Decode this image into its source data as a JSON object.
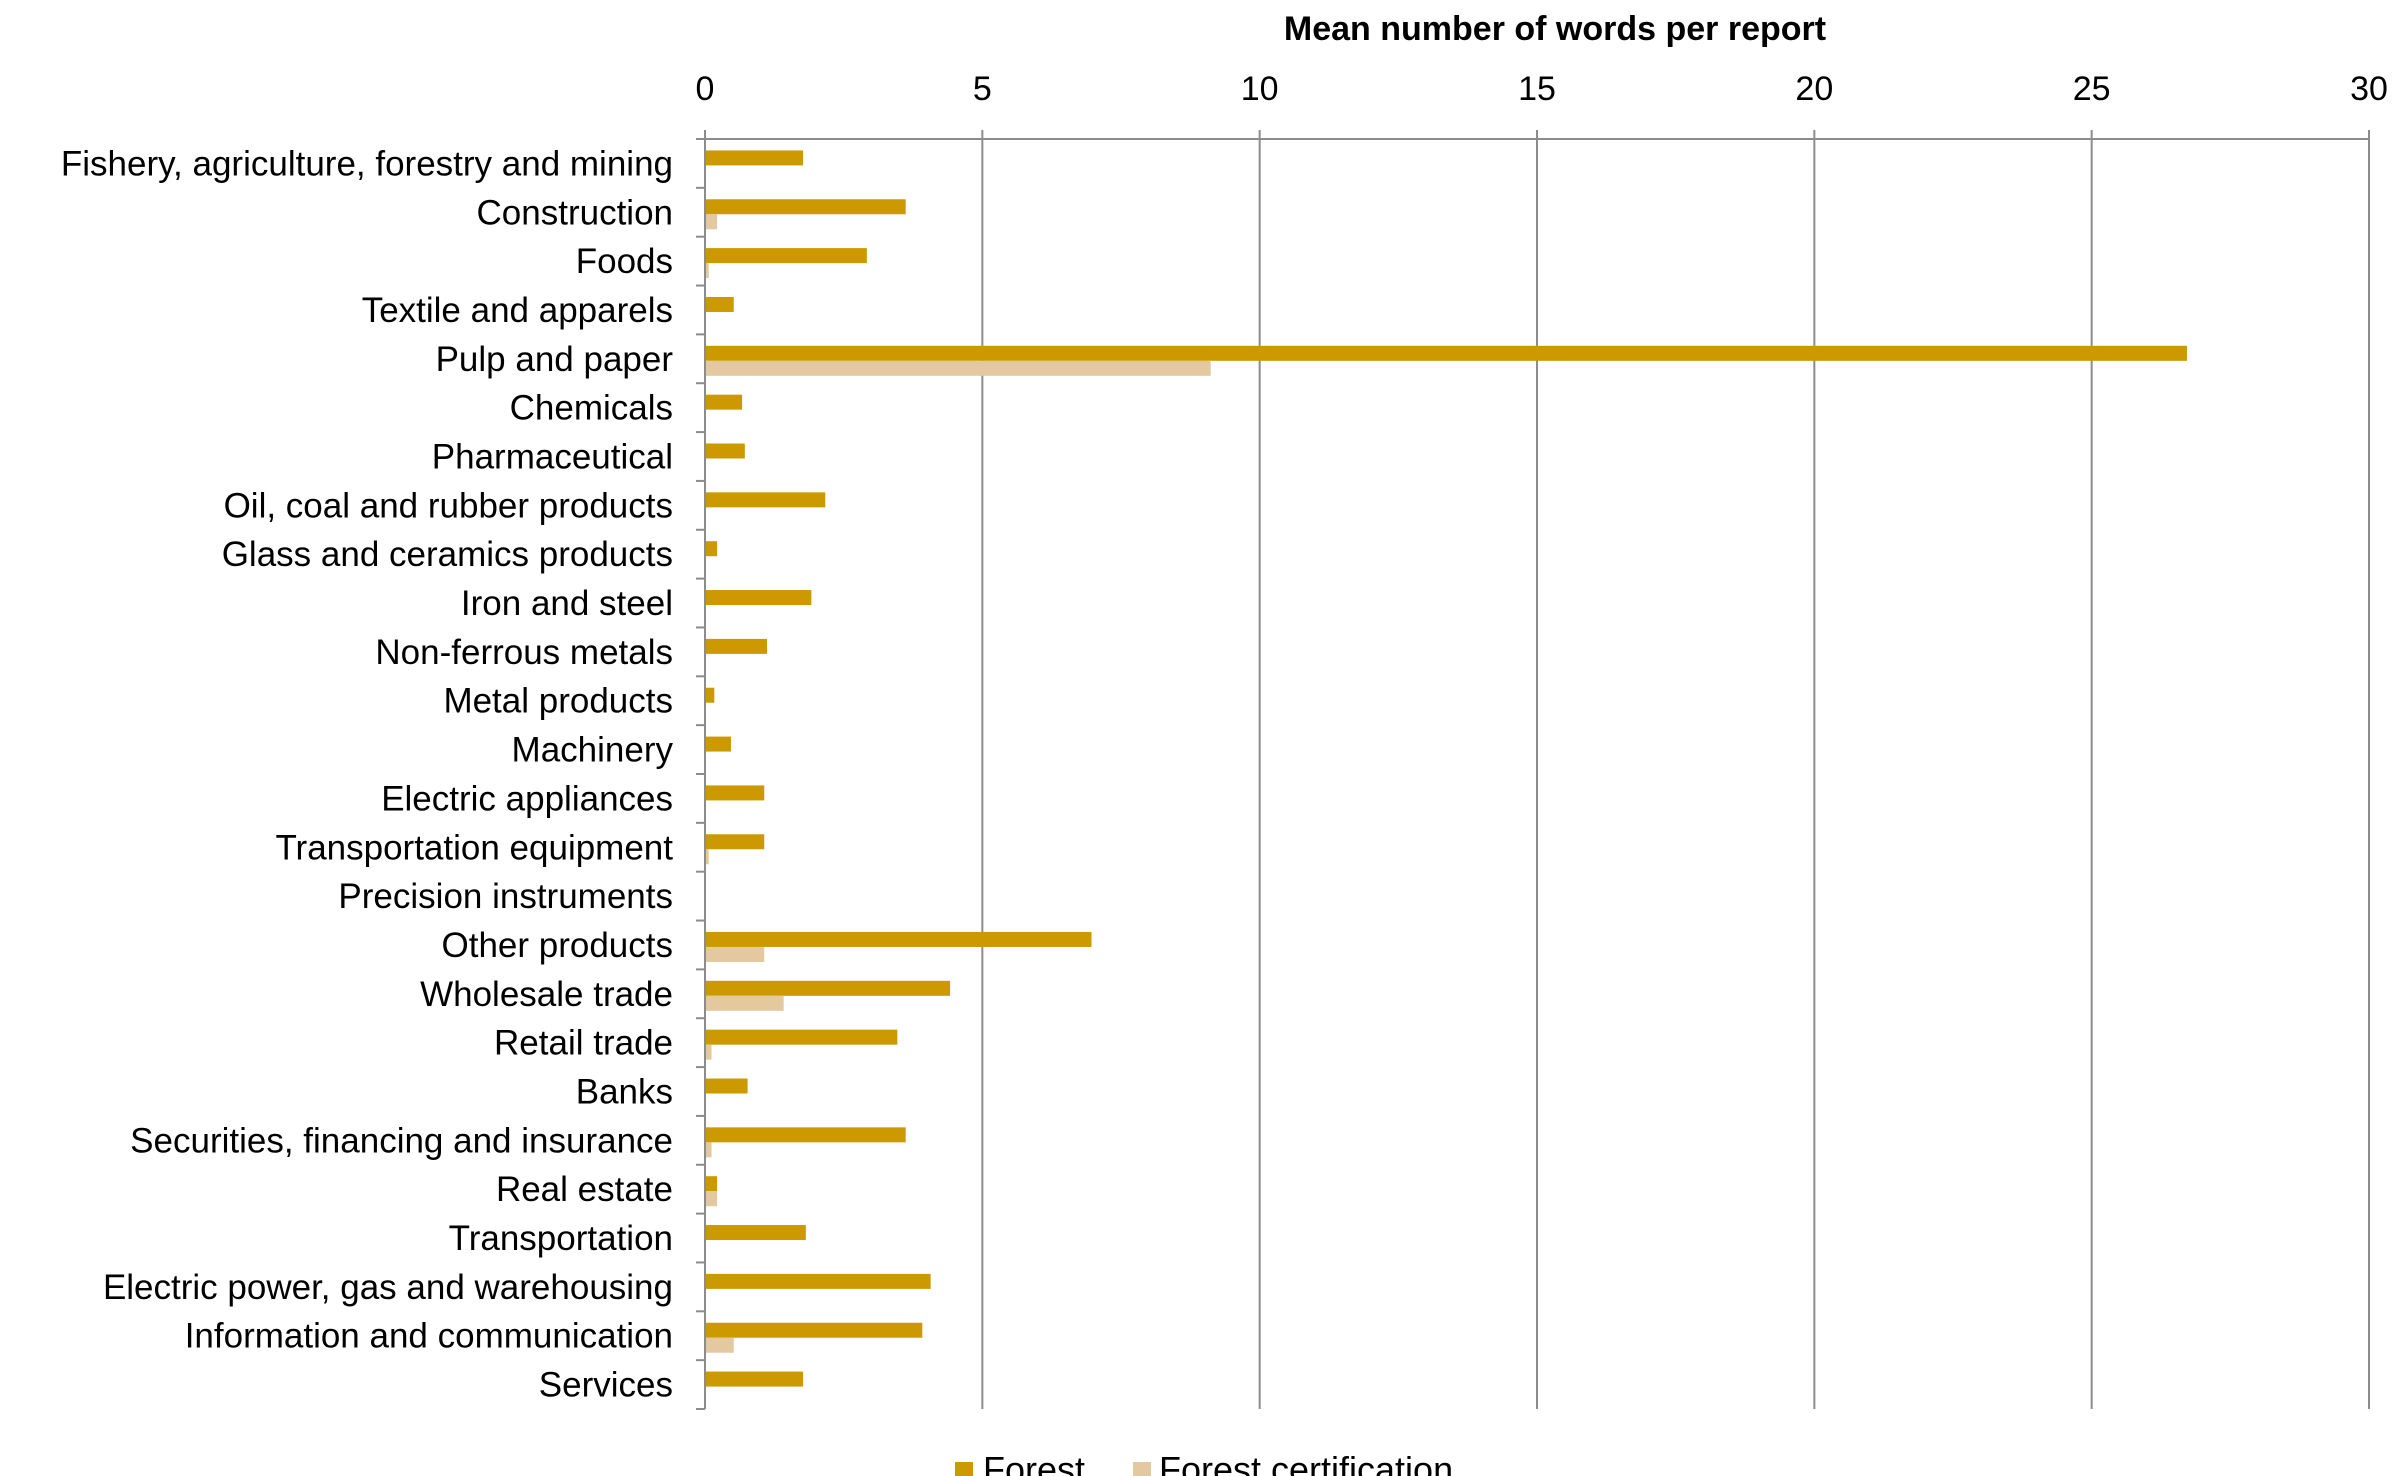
{
  "chart_data": {
    "type": "bar",
    "orientation": "horizontal",
    "title": "",
    "xlabel": "Mean number of words per report",
    "ylabel": "",
    "xlim": [
      0,
      30
    ],
    "xticks": [
      0,
      5,
      10,
      15,
      20,
      25,
      30
    ],
    "x_axis_position": "top",
    "grid": "vertical",
    "legend_position": "bottom",
    "categories": [
      "Fishery, agriculture, forestry and mining",
      "Construction",
      "Foods",
      "Textile and apparels",
      "Pulp and paper",
      "Chemicals",
      "Pharmaceutical",
      "Oil, coal and rubber products",
      "Glass and ceramics products",
      "Iron and steel",
      "Non-ferrous metals",
      "Metal products",
      "Machinery",
      "Electric appliances",
      "Transportation equipment",
      "Precision instruments",
      "Other products",
      "Wholesale trade",
      "Retail trade",
      "Banks",
      "Securities, financing and insurance",
      "Real estate",
      "Transportation",
      "Electric power, gas and warehousing",
      "Information and communication",
      "Services"
    ],
    "series": [
      {
        "name": "Forest",
        "color": "#CC9900",
        "values": [
          1.75,
          3.6,
          2.9,
          0.5,
          26.7,
          0.65,
          0.7,
          2.15,
          0.2,
          1.9,
          1.1,
          0.15,
          0.45,
          1.05,
          1.05,
          0.0,
          6.95,
          4.4,
          3.45,
          0.75,
          3.6,
          0.2,
          1.8,
          4.05,
          3.9,
          1.75
        ]
      },
      {
        "name": "Forest certification",
        "color": "#E3C8A0",
        "values": [
          0.0,
          0.2,
          0.05,
          0.0,
          9.1,
          0.0,
          0.0,
          0.0,
          0.0,
          0.0,
          0.0,
          0.0,
          0.0,
          0.0,
          0.05,
          0.0,
          1.05,
          1.4,
          0.1,
          0.0,
          0.1,
          0.2,
          0.0,
          0.0,
          0.5,
          0.0
        ]
      }
    ]
  }
}
